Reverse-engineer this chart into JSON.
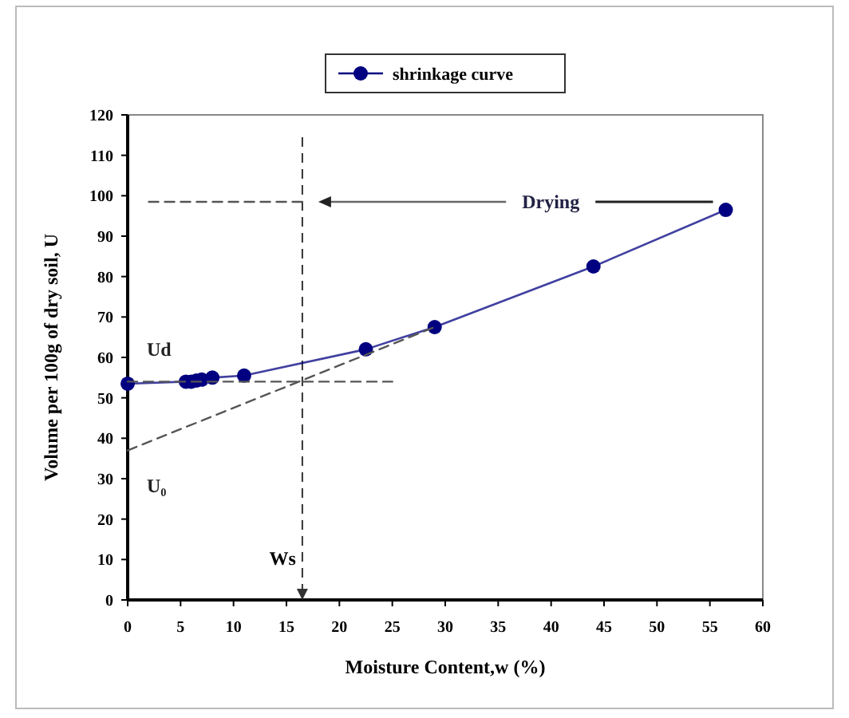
{
  "chart_data": {
    "type": "line",
    "xlabel": "Moisture Content,w (%)",
    "ylabel": "Volume per 100g of dry soil, U",
    "xlim": [
      0,
      60
    ],
    "xticks": [
      0,
      5,
      10,
      15,
      20,
      25,
      30,
      35,
      40,
      45,
      50,
      55,
      60
    ],
    "ylim": [
      0,
      120
    ],
    "yticks": [
      0,
      10,
      20,
      30,
      40,
      50,
      60,
      70,
      80,
      90,
      100,
      110,
      120
    ],
    "grid": false,
    "legend": "top",
    "series": [
      {
        "name": "shrinkage curve",
        "color": "#000080",
        "marker": "circle",
        "line_style": "solid",
        "x": [
          0,
          5.5,
          6,
          6.5,
          7,
          8,
          11,
          22.5,
          29,
          44,
          56.5
        ],
        "values": [
          53.5,
          54,
          54,
          54.3,
          54.5,
          55,
          55.5,
          62,
          67.5,
          82.5,
          96.5
        ]
      },
      {
        "color": "#555555",
        "marker": "none",
        "line_style": "dashed",
        "x": [
          0,
          25
        ],
        "values": [
          54,
          54
        ]
      },
      {
        "color": "#555555",
        "marker": "none",
        "line_style": "dashed",
        "x": [
          0,
          29
        ],
        "values": [
          37,
          67.5
        ]
      },
      {
        "color": "#555555",
        "marker": "none",
        "line_style": "dashed",
        "x": [
          2,
          16.5
        ],
        "values": [
          98.5,
          98.5
        ]
      }
    ],
    "ref_lines": [
      {
        "axis": "x",
        "value": 16.5,
        "label": "Ws",
        "color": "#333333",
        "line_style": "dashed"
      }
    ],
    "annotations": [
      "Ud",
      "U₀",
      "Drying"
    ]
  }
}
